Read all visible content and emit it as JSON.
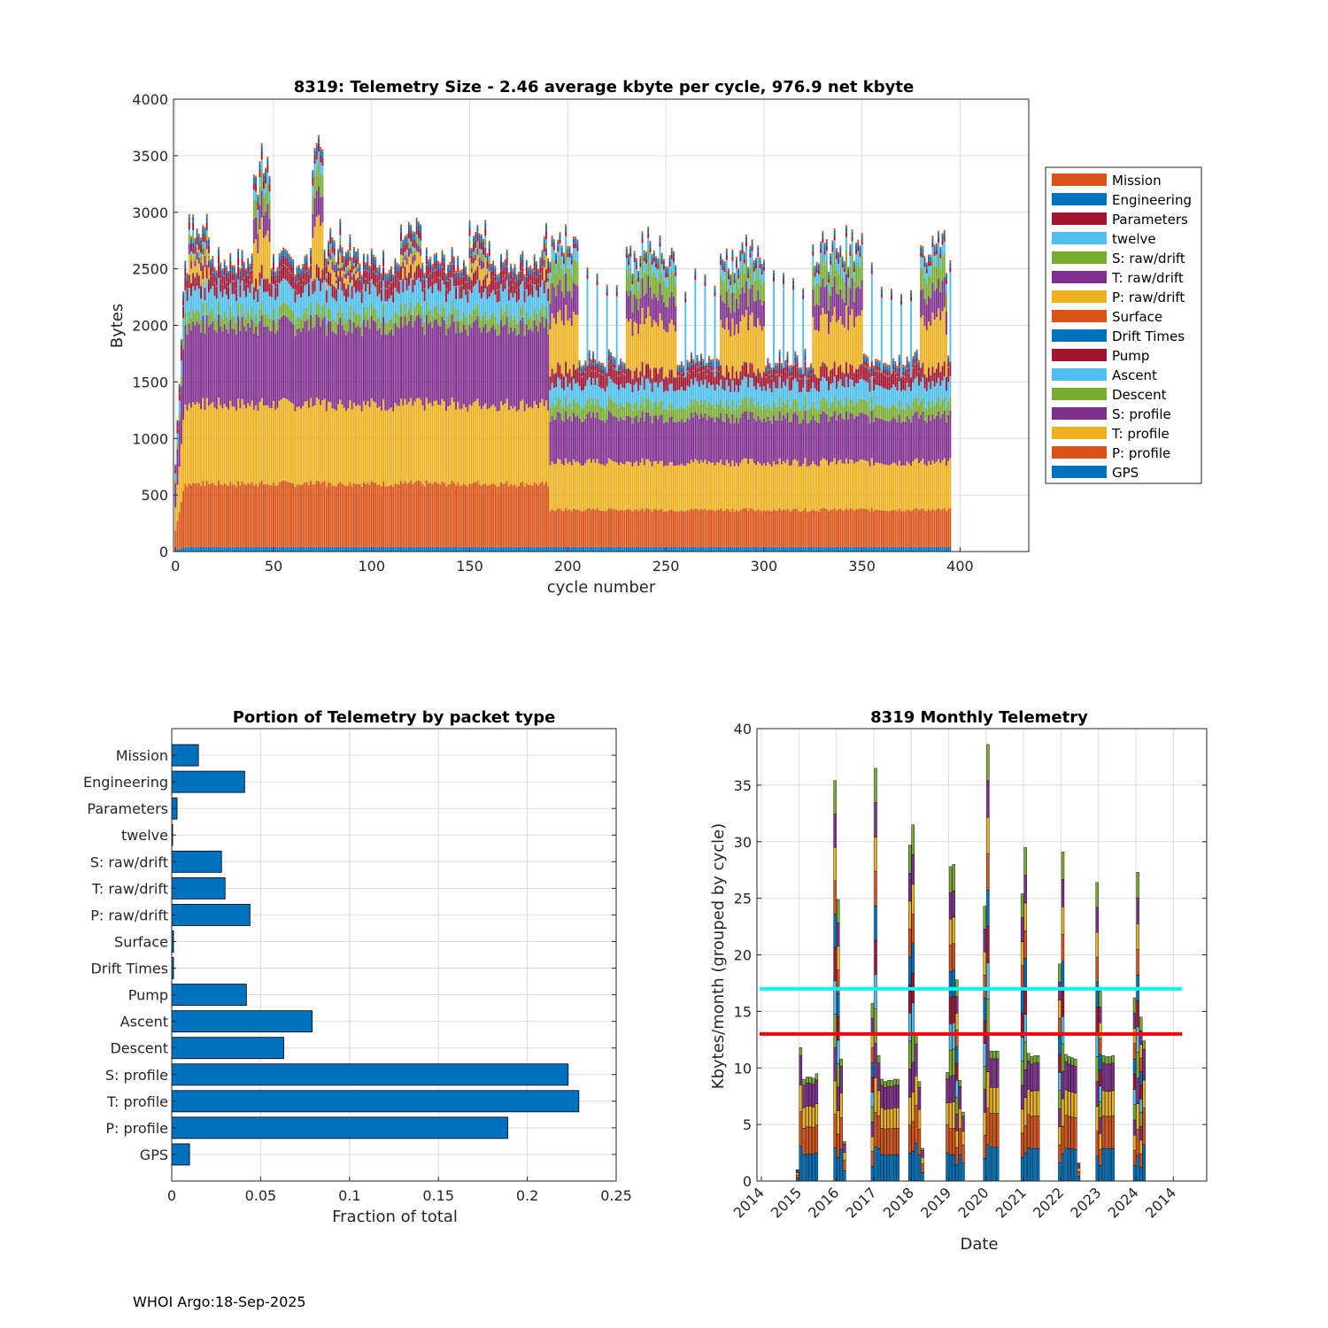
{
  "colors": {
    "Mission": "#D95319",
    "Engineering": "#0072BD",
    "Parameters": "#A2142F",
    "twelve": "#4DBEEE",
    "S: raw/drift": "#77AC30",
    "T: raw/drift": "#7E2F8E",
    "P: raw/drift": "#EDB120",
    "Surface": "#D95319",
    "Drift Times": "#0072BD",
    "Pump": "#A2142F",
    "Ascent": "#4DBEEE",
    "Descent": "#77AC30",
    "S: profile": "#7E2F8E",
    "T: profile": "#EDB120",
    "P: profile": "#D95319",
    "GPS": "#0072BD",
    "bar": "#0072BD",
    "line_cyan": "#00FFFF",
    "line_red": "#FF0000"
  },
  "footer": "WHOI Argo:18-Sep-2025",
  "chart_data": [
    {
      "type": "bar",
      "stacked": true,
      "title": "8319: Telemetry Size - 2.46 average kbyte per cycle,  976.9 net kbyte",
      "xlabel": "cycle number",
      "ylabel": "Bytes",
      "xlim": [
        -1,
        435
      ],
      "ylim": [
        0,
        4000
      ],
      "xticks": [
        0,
        50,
        100,
        150,
        200,
        250,
        300,
        350,
        400
      ],
      "yticks": [
        0,
        500,
        1000,
        1500,
        2000,
        2500,
        3000,
        3500,
        4000
      ],
      "grid": true,
      "legend_position": "outside-right",
      "legend": [
        "Mission",
        "Engineering",
        "Parameters",
        "twelve",
        "S: raw/drift",
        "T: raw/drift",
        "P: raw/drift",
        "Surface",
        "Drift Times",
        "Pump",
        "Ascent",
        "Descent",
        "S: profile",
        "T: profile",
        "P: profile",
        "GPS"
      ],
      "segments_bottom_to_top": [
        "GPS",
        "P: profile",
        "T: profile",
        "S: profile",
        "Descent",
        "Ascent",
        "Pump",
        "Drift Times",
        "Surface",
        "P: raw/drift",
        "T: raw/drift",
        "S: raw/drift",
        "twelve",
        "Parameters",
        "Engineering",
        "Mission"
      ],
      "regimes": [
        {
          "cycles": [
            5,
            190
          ],
          "segment_bytes": [
            40,
            560,
            700,
            700,
            110,
            200,
            110,
            5,
            5,
            0,
            0,
            0,
            0,
            70,
            50,
            20
          ],
          "approx_total": 2470
        },
        {
          "cycles": [
            191,
            395
          ],
          "segment_bytes": [
            40,
            330,
            420,
            400,
            120,
            170,
            120,
            5,
            5,
            0,
            0,
            0,
            0,
            40,
            40,
            20
          ],
          "approx_total": 1700
        }
      ],
      "burst_cycles": [
        {
          "cycles": [
            7,
            17
          ],
          "approx_total": 2900
        },
        {
          "cycles": [
            40,
            48
          ],
          "approx_total": 3450
        },
        {
          "cycles": [
            70,
            75
          ],
          "approx_total": 3600
        },
        {
          "cycles": [
            77,
            93
          ],
          "approx_total": 2800
        },
        {
          "cycles": [
            115,
            125
          ],
          "approx_total": 2800
        },
        {
          "cycles": [
            150,
            160
          ],
          "approx_total": 2850
        },
        {
          "cycles": [
            188,
            205
          ],
          "approx_total": 2750
        },
        {
          "cycles": [
            230,
            255
          ],
          "approx_total": 2700
        },
        {
          "cycles": [
            278,
            300
          ],
          "approx_total": 2650
        },
        {
          "cycles": [
            325,
            350
          ],
          "approx_total": 2700
        },
        {
          "cycles": [
            380,
            393
          ],
          "approx_total": 2700
        }
      ]
    },
    {
      "type": "bar",
      "orientation": "horizontal",
      "title": "Portion of Telemetry by packet type",
      "xlabel": "Fraction of total",
      "ylabel": "",
      "xlim": [
        0,
        0.25
      ],
      "xticks": [
        0,
        0.05,
        0.1,
        0.15,
        0.2,
        0.25
      ],
      "xtick_labels": [
        "0",
        "0.05",
        "0.1",
        "0.15",
        "0.2",
        "0.25"
      ],
      "grid": true,
      "categories": [
        "Mission",
        "Engineering",
        "Parameters",
        "twelve",
        "S: raw/drift",
        "T: raw/drift",
        "P: raw/drift",
        "Surface",
        "Drift Times",
        "Pump",
        "Ascent",
        "Descent",
        "S: profile",
        "T: profile",
        "P: profile",
        "GPS"
      ],
      "values": [
        0.015,
        0.041,
        0.003,
        0.0005,
        0.028,
        0.03,
        0.044,
        0.001,
        0.001,
        0.042,
        0.079,
        0.063,
        0.223,
        0.229,
        0.189,
        0.01
      ]
    },
    {
      "type": "bar",
      "stacked": true,
      "title": "8319 Monthly Telemetry",
      "xlabel": "Date",
      "ylabel": "Kbytes/month (grouped by cycle)",
      "ylim": [
        0,
        40
      ],
      "yticks": [
        0,
        5,
        10,
        15,
        20,
        25,
        30,
        35,
        40
      ],
      "xtick_labels": [
        "2014",
        "2015",
        "2016",
        "2017",
        "2018",
        "2019",
        "2020",
        "2021",
        "2022",
        "2023",
        "2024",
        "2014"
      ],
      "grid": true,
      "hlines": [
        {
          "y": 17,
          "color": "cyan"
        },
        {
          "y": 13,
          "color": "red"
        }
      ],
      "years": [
        {
          "year": "2015",
          "monthly_totals": [
            1,
            11.8,
            9.0,
            9.2,
            9.2,
            9.1,
            9.5
          ]
        },
        {
          "year": "2016",
          "monthly_totals": [
            35.4,
            24.9,
            10.8,
            3.5
          ]
        },
        {
          "year": "2017",
          "monthly_totals": [
            15.7,
            36.5,
            11.1,
            9.0,
            8.8,
            8.9,
            8.9,
            9.0,
            9.0
          ]
        },
        {
          "year": "2018",
          "monthly_totals": [
            29.7,
            31.5,
            12.9,
            8.8,
            2.9
          ]
        },
        {
          "year": "2019",
          "monthly_totals": [
            9.6,
            27.8,
            28.0,
            17.8,
            8.9,
            6.1
          ]
        },
        {
          "year": "2020",
          "monthly_totals": [
            24.3,
            38.6,
            11.5,
            11.5,
            11.5
          ]
        },
        {
          "year": "2021",
          "monthly_totals": [
            25.4,
            29.5,
            11.3,
            11.0,
            11.1,
            11.1
          ]
        },
        {
          "year": "2022",
          "monthly_totals": [
            19.2,
            29.1,
            11.2,
            11.0,
            10.9,
            10.8,
            1.6
          ]
        },
        {
          "year": "2023",
          "monthly_totals": [
            26.4,
            16.8,
            11.1,
            11.0,
            11.0,
            11.1
          ]
        },
        {
          "year": "2024",
          "monthly_totals": [
            16.2,
            27.3,
            14.5,
            12.4
          ]
        }
      ]
    }
  ]
}
